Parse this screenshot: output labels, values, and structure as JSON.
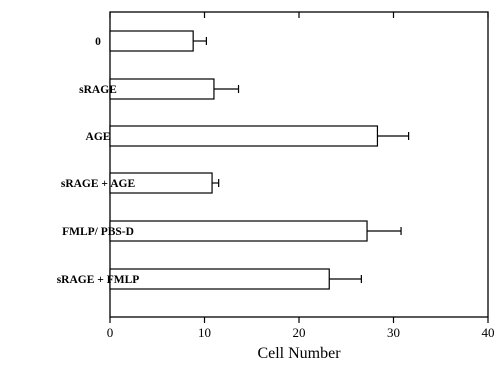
{
  "chart_data": {
    "type": "bar",
    "orientation": "horizontal",
    "categories": [
      "0",
      "sRAGE",
      "AGE",
      "sRAGE + AGE",
      "FMLP/ PBS-D",
      "sRAGE + FMLP"
    ],
    "values": [
      8.8,
      11.0,
      28.3,
      10.8,
      27.2,
      23.2
    ],
    "errors": [
      1.4,
      2.6,
      3.3,
      0.7,
      3.6,
      3.4
    ],
    "xlabel": "Cell Number",
    "ylabel": "",
    "title": "",
    "xlim": [
      0,
      40
    ],
    "xticks": [
      "0",
      "10",
      "20",
      "30",
      "40"
    ],
    "grid": false,
    "bar_fill": "#ffffff",
    "bar_stroke": "#000000"
  }
}
